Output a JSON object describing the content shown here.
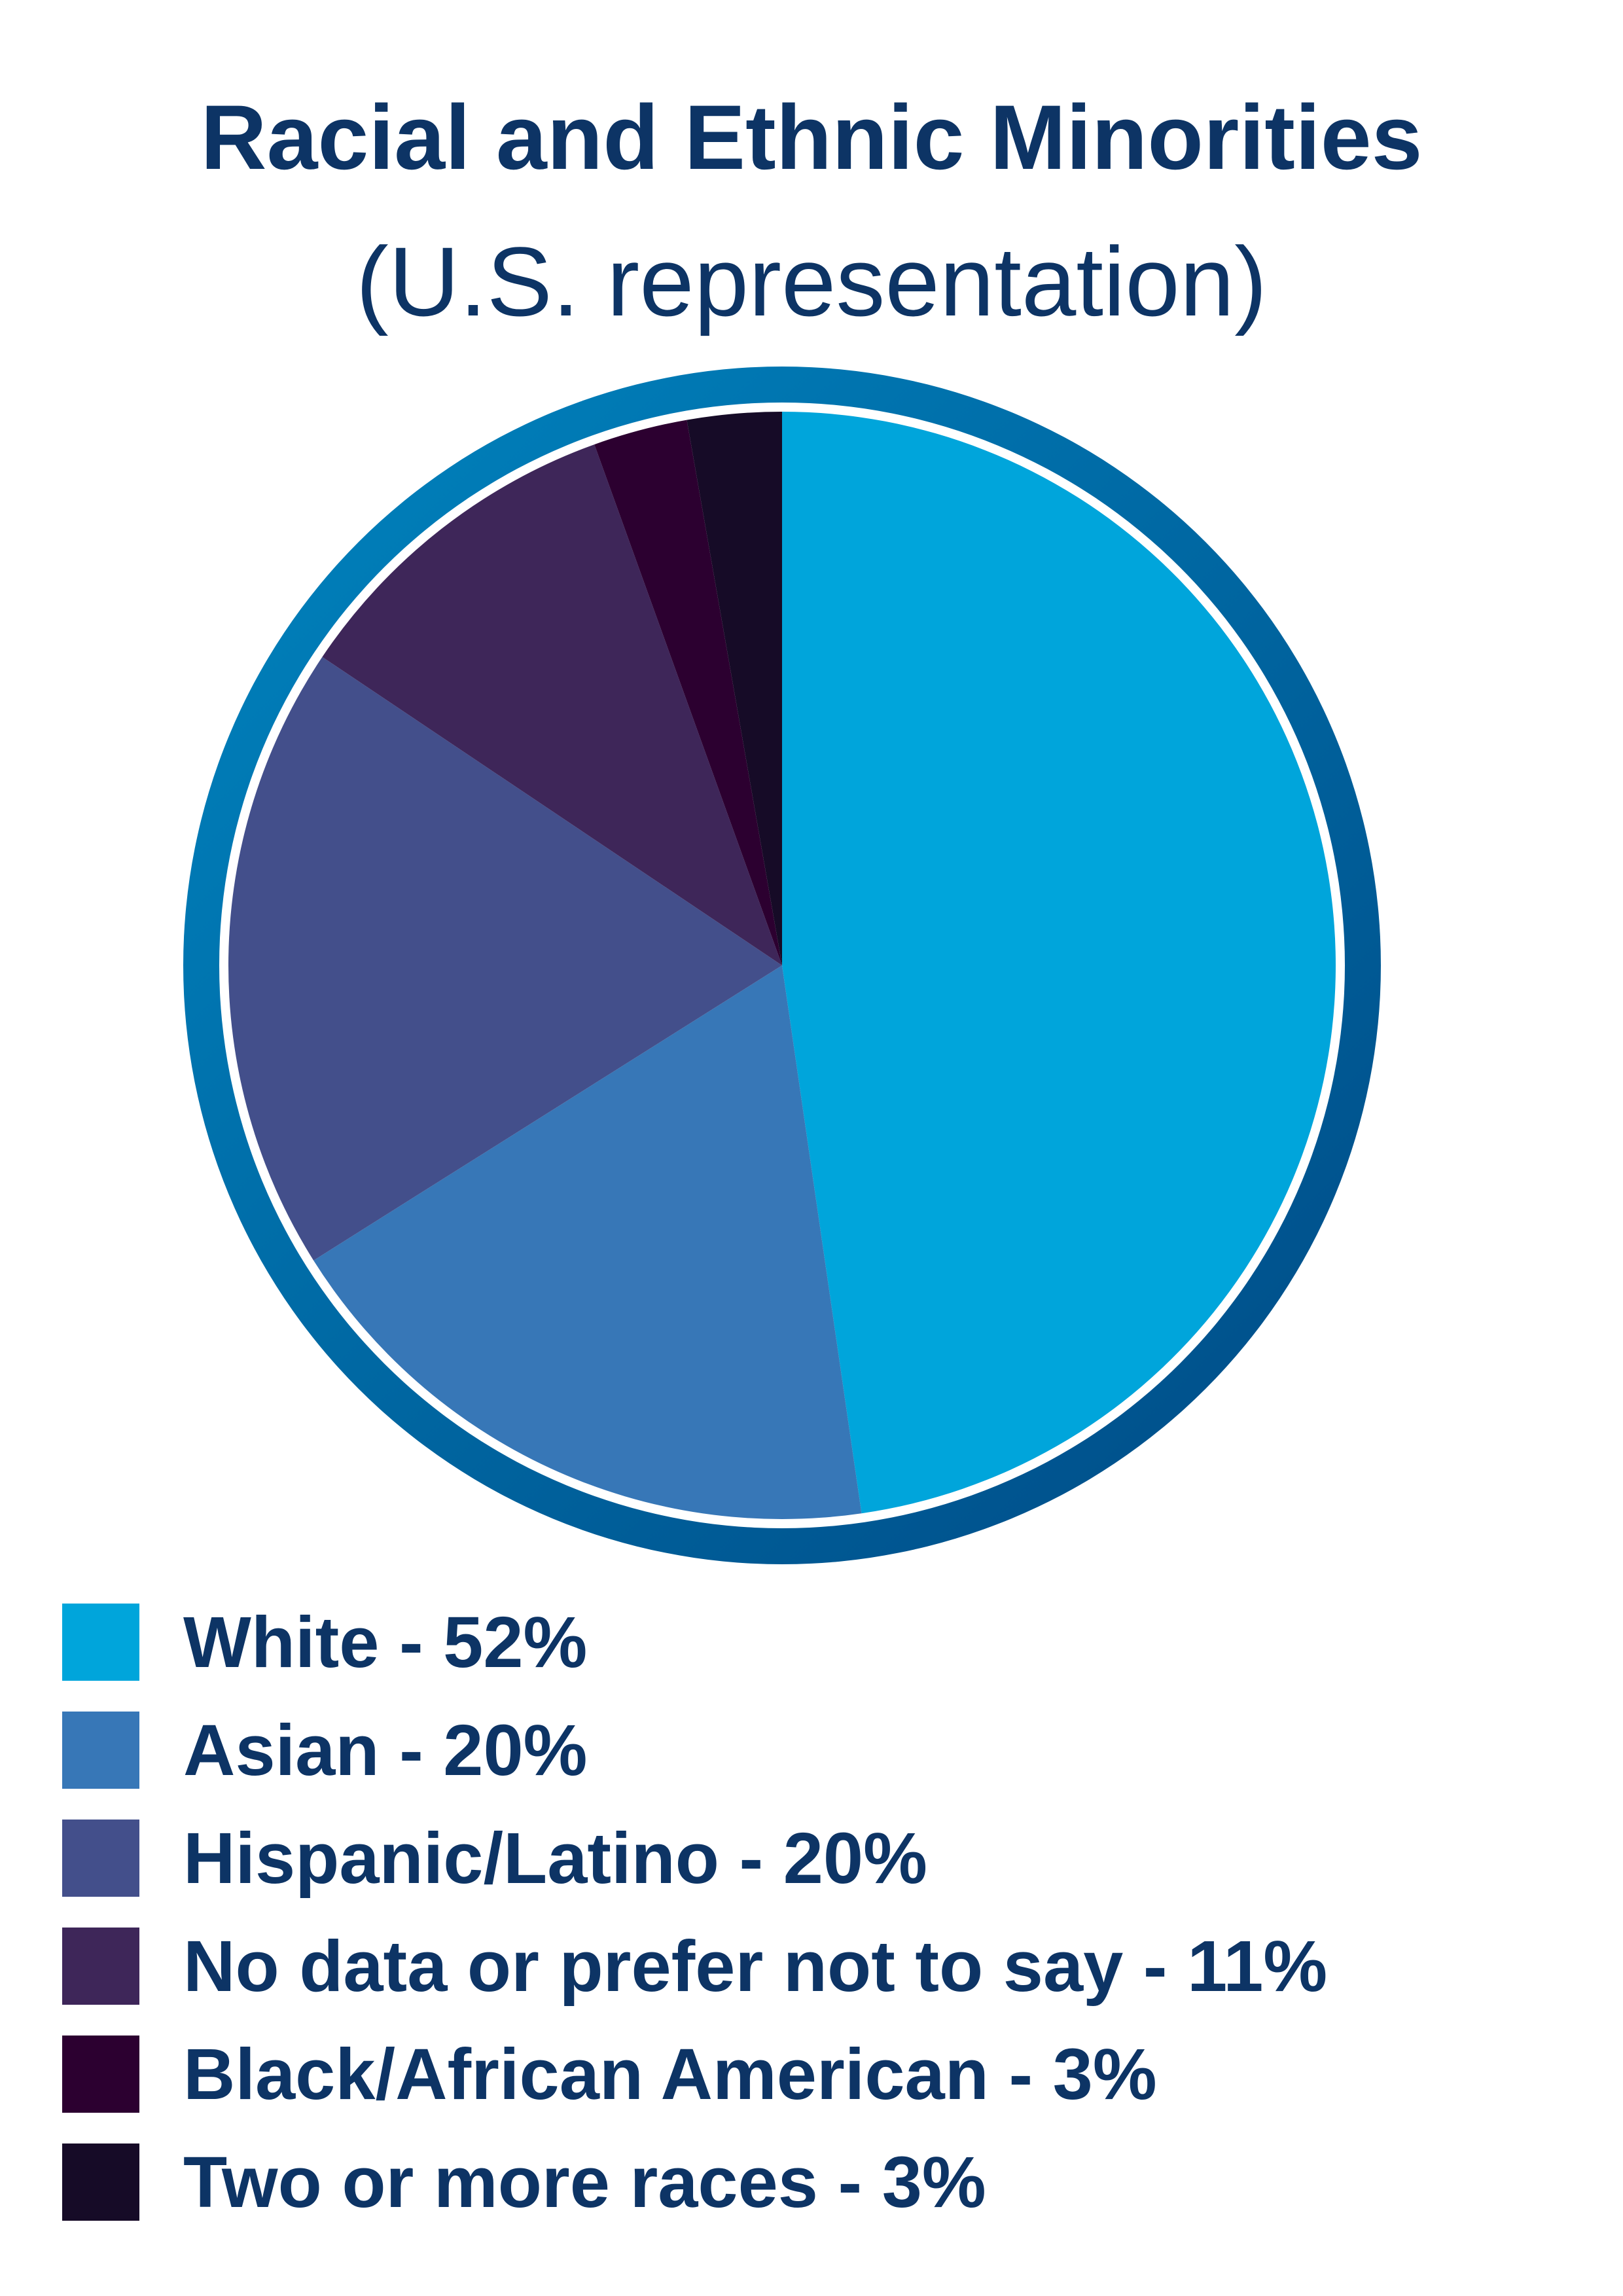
{
  "chart_data": {
    "type": "pie",
    "title": "Racial and Ethnic Minorities",
    "subtitle": "(U.S. representation)",
    "slices": [
      {
        "label": "White - 52%",
        "name": "White",
        "value": 52,
        "color": "#00a5db"
      },
      {
        "label": "Asian - 20%",
        "name": "Asian",
        "value": 20,
        "color": "#3777b7"
      },
      {
        "label": "Hispanic/Latino - 20%",
        "name": "Hispanic/Latino",
        "value": 20,
        "color": "#434f8b"
      },
      {
        "label": "No data or prefer not to say - 11%",
        "name": "No data or prefer not to say",
        "value": 11,
        "color": "#3e2659"
      },
      {
        "label": "Black/African American - 3%",
        "name": "Black/African American",
        "value": 3,
        "color": "#2c0030"
      },
      {
        "label": "Two or more races - 3%",
        "name": "Two or more races",
        "value": 3,
        "color": "#160b27"
      }
    ],
    "legend_position": "bottom-left",
    "ring_colors": {
      "start": "#0085c0",
      "end": "#004a85"
    }
  }
}
